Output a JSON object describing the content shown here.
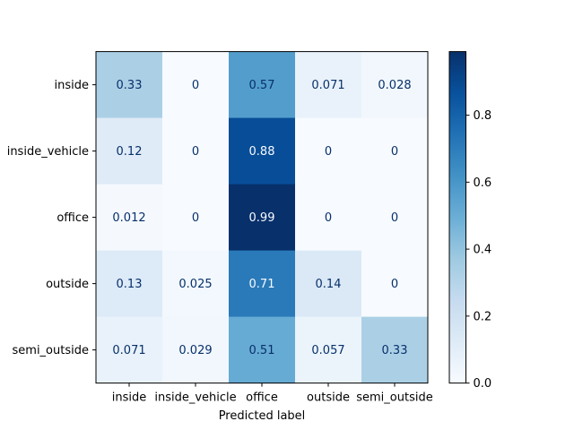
{
  "chart_data": {
    "type": "heatmap",
    "title": "",
    "xlabel": "Predicted label",
    "ylabel": "",
    "x_categories": [
      "inside",
      "inside_vehicle",
      "office",
      "outside",
      "semi_outside"
    ],
    "y_categories": [
      "inside",
      "inside_vehicle",
      "office",
      "outside",
      "semi_outside"
    ],
    "value_labels": [
      [
        "0.33",
        "0",
        "0.57",
        "0.071",
        "0.028"
      ],
      [
        "0.12",
        "0",
        "0.88",
        "0",
        "0"
      ],
      [
        "0.012",
        "0",
        "0.99",
        "0",
        "0"
      ],
      [
        "0.13",
        "0.025",
        "0.71",
        "0.14",
        "0"
      ],
      [
        "0.071",
        "0.029",
        "0.51",
        "0.057",
        "0.33"
      ]
    ],
    "values": [
      [
        0.33,
        0,
        0.57,
        0.071,
        0.028
      ],
      [
        0.12,
        0,
        0.88,
        0,
        0
      ],
      [
        0.012,
        0,
        0.99,
        0,
        0
      ],
      [
        0.13,
        0.025,
        0.71,
        0.14,
        0
      ],
      [
        0.071,
        0.029,
        0.51,
        0.057,
        0.33
      ]
    ],
    "colormap": "Blues",
    "color_range": [
      0,
      0.99
    ],
    "colorbar_ticks": [
      "0.0",
      "0.2",
      "0.4",
      "0.6",
      "0.8"
    ],
    "colorbar_tick_values": [
      0.0,
      0.2,
      0.4,
      0.6,
      0.8
    ]
  }
}
